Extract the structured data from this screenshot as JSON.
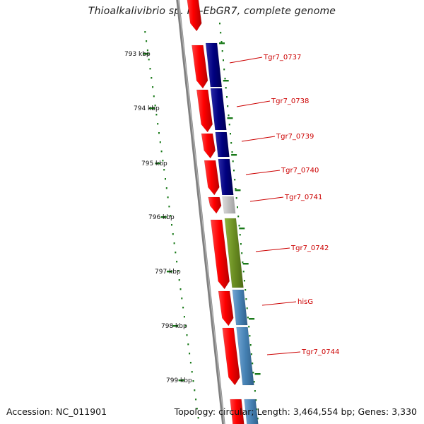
{
  "header": {
    "title": "Thioalkalivibrio sp. HL-EbGR7, complete genome"
  },
  "footer": {
    "accession": "Accession: NC_011901",
    "summary": "Topology: circular; Length: 3,464,554 bp; Genes: 3,330"
  },
  "scale_labels": [
    "793 kbp",
    "794 kbp",
    "795 kbp",
    "796 kbp",
    "797 kbp",
    "798 kbp",
    "799 kbp"
  ],
  "gene_labels": [
    "Tgr7_0737",
    "Tgr7_0738",
    "Tgr7_0739",
    "Tgr7_0740",
    "Tgr7_0741",
    "Tgr7_0742",
    "hisG",
    "Tgr7_0744"
  ],
  "colors": {
    "cds_forward": "#ff0000",
    "gene_navy": "#00007f",
    "gene_gray": "#b8b8b8",
    "gene_olive": "#6b8e23",
    "gene_steelblue": "#4682b4",
    "backbone": "#808080",
    "tick": "#1a7a1a",
    "label_line": "#cc0000"
  }
}
